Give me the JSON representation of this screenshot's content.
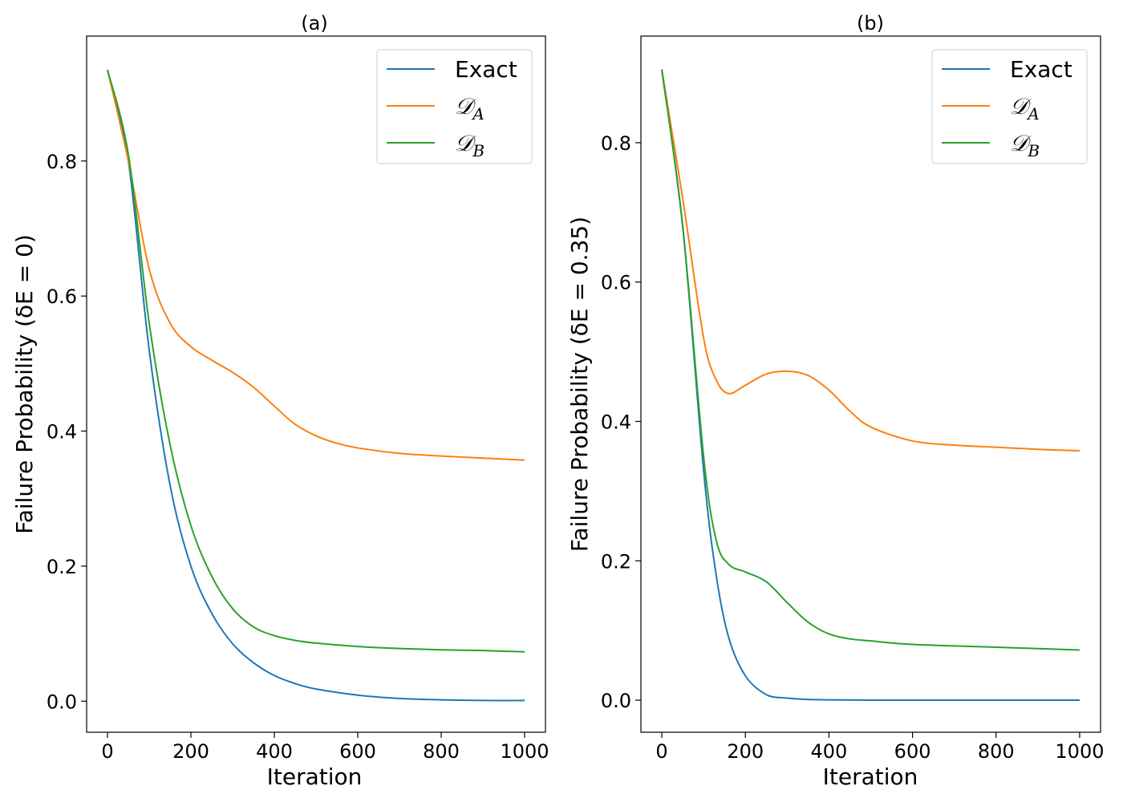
{
  "chart_data": [
    {
      "type": "line",
      "title": "(a)",
      "xlabel": "Iteration",
      "ylabel": "Failure Probability (δE = 0)",
      "xlim": [
        -50,
        1050
      ],
      "ylim": [
        -0.046,
        0.985
      ],
      "xticks": [
        0,
        200,
        400,
        600,
        800,
        1000
      ],
      "xtick_labels": [
        "0",
        "200",
        "400",
        "600",
        "800",
        "1000"
      ],
      "yticks": [
        0.0,
        0.2,
        0.4,
        0.6,
        0.8
      ],
      "ytick_labels": [
        "0.0",
        "0.2",
        "0.4",
        "0.6",
        "0.8"
      ],
      "legend_position": "upper right",
      "series": [
        {
          "name": "Exact",
          "color": "#1f77b4",
          "x": [
            0,
            50,
            100,
            150,
            200,
            250,
            300,
            350,
            400,
            450,
            500,
            600,
            700,
            800,
            900,
            1000
          ],
          "y": [
            0.935,
            0.8,
            0.52,
            0.32,
            0.2,
            0.13,
            0.085,
            0.057,
            0.038,
            0.026,
            0.018,
            0.009,
            0.004,
            0.002,
            0.001,
            0.001
          ]
        },
        {
          "name": "𝒟_A",
          "color": "#ff7f0e",
          "x": [
            0,
            50,
            100,
            150,
            200,
            250,
            300,
            350,
            400,
            450,
            500,
            550,
            600,
            700,
            800,
            900,
            1000
          ],
          "y": [
            0.935,
            0.8,
            0.64,
            0.56,
            0.525,
            0.505,
            0.487,
            0.465,
            0.437,
            0.41,
            0.393,
            0.382,
            0.375,
            0.367,
            0.363,
            0.36,
            0.357
          ]
        },
        {
          "name": "𝒟_B",
          "color": "#2ca02c",
          "x": [
            0,
            50,
            100,
            150,
            200,
            250,
            300,
            350,
            400,
            450,
            500,
            600,
            700,
            800,
            900,
            1000
          ],
          "y": [
            0.935,
            0.81,
            0.56,
            0.38,
            0.26,
            0.185,
            0.137,
            0.11,
            0.097,
            0.09,
            0.086,
            0.081,
            0.078,
            0.076,
            0.075,
            0.073
          ]
        }
      ]
    },
    {
      "type": "line",
      "title": "(b)",
      "xlabel": "Iteration",
      "ylabel": "Failure Probability (δE = 0.35)",
      "xlim": [
        -50,
        1050
      ],
      "ylim": [
        -0.046,
        0.953
      ],
      "xticks": [
        0,
        200,
        400,
        600,
        800,
        1000
      ],
      "xtick_labels": [
        "0",
        "200",
        "400",
        "600",
        "800",
        "1000"
      ],
      "yticks": [
        0.0,
        0.2,
        0.4,
        0.6,
        0.8
      ],
      "ytick_labels": [
        "0.0",
        "0.2",
        "0.4",
        "0.6",
        "0.8"
      ],
      "legend_position": "upper right",
      "series": [
        {
          "name": "Exact",
          "color": "#1f77b4",
          "x": [
            0,
            50,
            100,
            130,
            160,
            200,
            250,
            300,
            350,
            400,
            500,
            600,
            800,
            1000
          ],
          "y": [
            0.905,
            0.68,
            0.33,
            0.18,
            0.09,
            0.035,
            0.008,
            0.003,
            0.001,
            0.0005,
            0.0,
            0.0,
            0.0,
            0.0
          ]
        },
        {
          "name": "𝒟_A",
          "color": "#ff7f0e",
          "x": [
            0,
            50,
            100,
            130,
            160,
            200,
            250,
            300,
            350,
            400,
            450,
            500,
            600,
            700,
            800,
            900,
            1000
          ],
          "y": [
            0.905,
            0.72,
            0.52,
            0.46,
            0.44,
            0.452,
            0.468,
            0.472,
            0.466,
            0.445,
            0.415,
            0.392,
            0.372,
            0.366,
            0.363,
            0.36,
            0.358
          ]
        },
        {
          "name": "𝒟_B",
          "color": "#2ca02c",
          "x": [
            0,
            50,
            100,
            130,
            160,
            200,
            250,
            300,
            350,
            400,
            450,
            500,
            600,
            800,
            1000
          ],
          "y": [
            0.905,
            0.68,
            0.35,
            0.23,
            0.195,
            0.184,
            0.17,
            0.14,
            0.112,
            0.095,
            0.088,
            0.085,
            0.08,
            0.076,
            0.072
          ]
        }
      ]
    }
  ]
}
